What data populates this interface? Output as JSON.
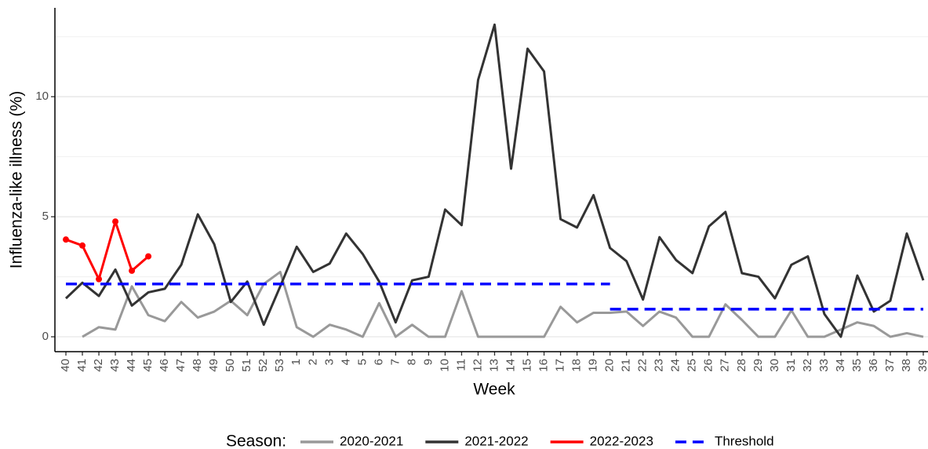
{
  "chart_data": {
    "type": "line",
    "x_label": "Week",
    "y_label": "Influenza-like illness (%)",
    "legend_title": "Season:",
    "legend_position": "bottom",
    "grid": true,
    "categories": [
      "40",
      "41",
      "42",
      "43",
      "44",
      "45",
      "46",
      "47",
      "48",
      "49",
      "50",
      "51",
      "52",
      "53",
      "1",
      "2",
      "3",
      "4",
      "5",
      "6",
      "7",
      "8",
      "9",
      "10",
      "11",
      "12",
      "13",
      "14",
      "15",
      "16",
      "17",
      "18",
      "19",
      "20",
      "21",
      "22",
      "23",
      "24",
      "25",
      "26",
      "27",
      "28",
      "29",
      "30",
      "31",
      "32",
      "33",
      "34",
      "35",
      "36",
      "37",
      "38",
      "39"
    ],
    "ylim": [
      -0.62,
      13.7
    ],
    "yticks": [
      0,
      5,
      10
    ],
    "minor_yticks": [
      2.5,
      7.5,
      12.5
    ],
    "series": [
      {
        "name": "2020-2021",
        "color": "#999999",
        "style": "solid",
        "values": [
          null,
          0,
          0.4,
          0.3,
          2.1,
          0.9,
          0.65,
          1.45,
          0.8,
          1.05,
          1.5,
          0.9,
          2.2,
          2.7,
          0.4,
          0,
          0.5,
          0.3,
          0,
          1.4,
          0,
          0.5,
          0,
          0,
          1.9,
          0,
          0,
          0,
          0,
          0,
          1.25,
          0.6,
          1.0,
          1.0,
          1.05,
          0.45,
          1.05,
          0.8,
          0,
          0,
          1.35,
          0.7,
          0,
          0,
          1.1,
          0,
          0,
          0.3,
          0.6,
          0.45,
          0,
          0.15,
          0
        ]
      },
      {
        "name": "2021-2022",
        "color": "#333333",
        "style": "solid",
        "values": [
          1.6,
          2.25,
          1.7,
          2.8,
          1.3,
          1.85,
          2.0,
          3.0,
          5.1,
          3.85,
          1.45,
          2.3,
          0.5,
          2.1,
          3.75,
          2.7,
          3.05,
          4.3,
          3.45,
          2.3,
          0.6,
          2.35,
          2.5,
          5.3,
          4.65,
          10.7,
          13.0,
          7.0,
          12.0,
          11.05,
          4.9,
          4.55,
          5.9,
          3.7,
          3.15,
          1.55,
          4.15,
          3.2,
          2.65,
          4.6,
          5.2,
          2.65,
          2.5,
          1.6,
          3.0,
          3.35,
          0.95,
          0,
          2.55,
          1.05,
          1.5,
          4.3,
          2.35
        ]
      },
      {
        "name": "2022-2023",
        "color": "#ff0000",
        "style": "solid",
        "markers": true,
        "values": [
          4.05,
          3.8,
          2.4,
          4.8,
          2.75,
          3.35,
          null,
          null,
          null,
          null,
          null,
          null,
          null,
          null,
          null,
          null,
          null,
          null,
          null,
          null,
          null,
          null,
          null,
          null,
          null,
          null,
          null,
          null,
          null,
          null,
          null,
          null,
          null,
          null,
          null,
          null,
          null,
          null,
          null,
          null,
          null,
          null,
          null,
          null,
          null,
          null,
          null,
          null,
          null,
          null,
          null,
          null,
          null
        ]
      },
      {
        "name": "Threshold",
        "color": "#0000ff",
        "style": "step-dashed",
        "values": [
          2.2,
          2.2,
          2.2,
          2.2,
          2.2,
          2.2,
          2.2,
          2.2,
          2.2,
          2.2,
          2.2,
          2.2,
          2.2,
          2.2,
          2.2,
          2.2,
          2.2,
          2.2,
          2.2,
          2.2,
          2.2,
          2.2,
          2.2,
          2.2,
          2.2,
          2.2,
          2.2,
          2.2,
          2.2,
          2.2,
          2.2,
          2.2,
          2.2,
          1.15,
          1.15,
          1.15,
          1.15,
          1.15,
          1.15,
          1.15,
          1.15,
          1.15,
          1.15,
          1.15,
          1.15,
          1.15,
          1.15,
          1.15,
          1.15,
          1.15,
          1.15,
          1.15,
          1.15
        ]
      }
    ]
  }
}
